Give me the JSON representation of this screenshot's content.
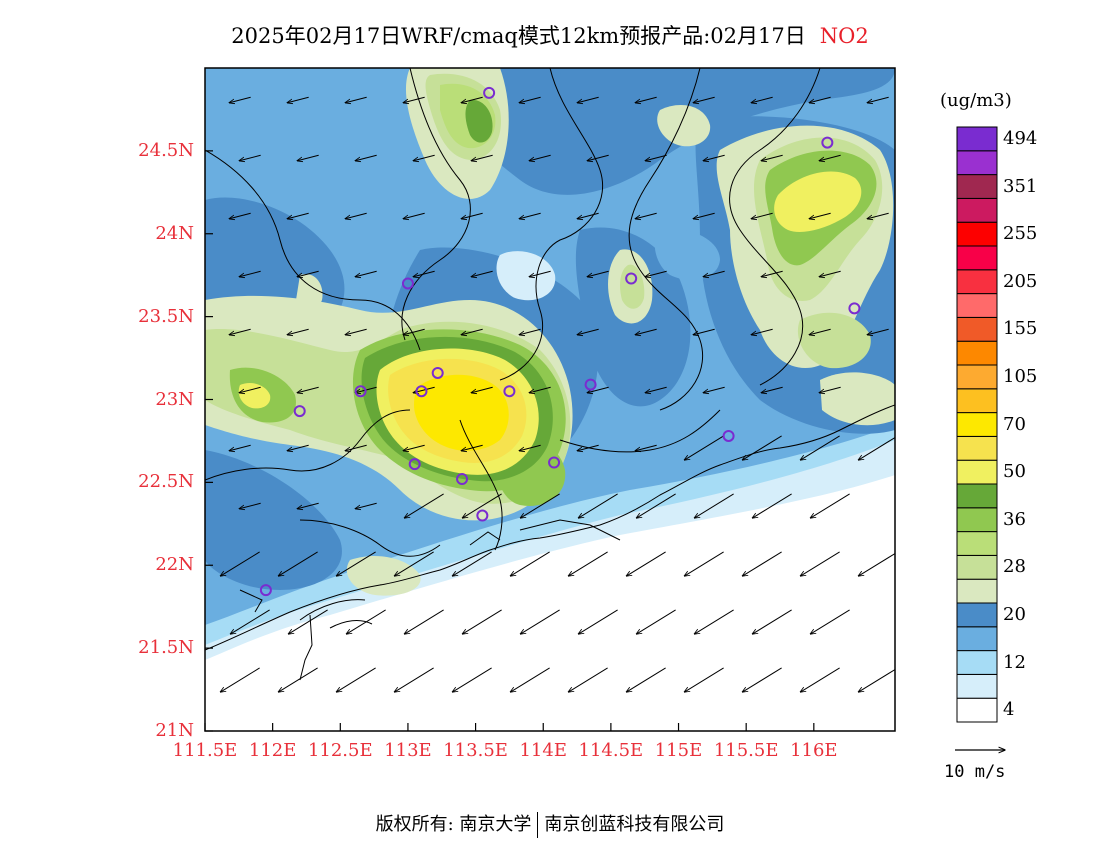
{
  "title": {
    "main": "2025年02月17日WRF/cmaq模式12km预报产品:02月17日",
    "pollutant": "NO2"
  },
  "map": {
    "lat_ticks": [
      {
        "value": 24.5,
        "label": "24.5N"
      },
      {
        "value": 24.0,
        "label": "24N"
      },
      {
        "value": 23.5,
        "label": "23.5N"
      },
      {
        "value": 23.0,
        "label": "23N"
      },
      {
        "value": 22.5,
        "label": "22.5N"
      },
      {
        "value": 22.0,
        "label": "22N"
      },
      {
        "value": 21.5,
        "label": "21.5N"
      },
      {
        "value": 21.0,
        "label": "21N"
      }
    ],
    "lon_ticks": [
      {
        "value": 111.5,
        "label": "111.5E"
      },
      {
        "value": 112.0,
        "label": "112E"
      },
      {
        "value": 112.5,
        "label": "112.5E"
      },
      {
        "value": 113.0,
        "label": "113E"
      },
      {
        "value": 113.5,
        "label": "113.5E"
      },
      {
        "value": 114.0,
        "label": "114E"
      },
      {
        "value": 114.5,
        "label": "114.5E"
      },
      {
        "value": 115.0,
        "label": "115E"
      },
      {
        "value": 115.5,
        "label": "115.5E"
      },
      {
        "value": 116.0,
        "label": "116E"
      }
    ],
    "lon_range": [
      111.5,
      116.6
    ],
    "lat_range": [
      21.0,
      25.0
    ],
    "wind_direction": "northeasterly",
    "station_markers": [
      {
        "lon": 113.6,
        "lat": 24.85
      },
      {
        "lon": 116.1,
        "lat": 24.55
      },
      {
        "lon": 113.0,
        "lat": 23.7
      },
      {
        "lon": 114.65,
        "lat": 23.73
      },
      {
        "lon": 116.3,
        "lat": 23.55
      },
      {
        "lon": 112.2,
        "lat": 22.93
      },
      {
        "lon": 112.65,
        "lat": 23.05
      },
      {
        "lon": 113.1,
        "lat": 23.05
      },
      {
        "lon": 113.22,
        "lat": 23.16
      },
      {
        "lon": 113.75,
        "lat": 23.05
      },
      {
        "lon": 114.35,
        "lat": 23.09
      },
      {
        "lon": 113.05,
        "lat": 22.61
      },
      {
        "lon": 113.4,
        "lat": 22.52
      },
      {
        "lon": 114.08,
        "lat": 22.62
      },
      {
        "lon": 113.55,
        "lat": 22.3
      },
      {
        "lon": 115.37,
        "lat": 22.78
      },
      {
        "lon": 111.95,
        "lat": 21.85
      }
    ],
    "colors": {
      "station_marker": "#7a2cd0",
      "tick_label": "#e8303a",
      "frame": "#000000"
    }
  },
  "colorbar": {
    "unit": "(ug/m3)",
    "colors": [
      "#ffffff",
      "#d6eefa",
      "#a6dcf5",
      "#6aaee0",
      "#4a8cc8",
      "#dae8c0",
      "#c6e098",
      "#bade78",
      "#90c850",
      "#66a838",
      "#f0f060",
      "#f6e24e",
      "#fde800",
      "#fdc020",
      "#fdaa30",
      "#fd8800",
      "#f05a28",
      "#ff6a6a",
      "#f83040",
      "#f80048",
      "#fd0000",
      "#cc1a60",
      "#a02850",
      "#9a30d0",
      "#7a2cd0"
    ],
    "labels": [
      {
        "text": "4",
        "boundary": 1
      },
      {
        "text": "12",
        "boundary": 3
      },
      {
        "text": "20",
        "boundary": 5
      },
      {
        "text": "28",
        "boundary": 7
      },
      {
        "text": "36",
        "boundary": 9
      },
      {
        "text": "50",
        "boundary": 11
      },
      {
        "text": "70",
        "boundary": 13
      },
      {
        "text": "105",
        "boundary": 15
      },
      {
        "text": "155",
        "boundary": 17
      },
      {
        "text": "205",
        "boundary": 19
      },
      {
        "text": "255",
        "boundary": 21
      },
      {
        "text": "351",
        "boundary": 23
      },
      {
        "text": "494",
        "boundary": 25
      }
    ]
  },
  "wind_reference": {
    "label": "10 m/s"
  },
  "copyright": {
    "prefix": "版权所有: 南京大学",
    "company": "南京创蓝科技有限公司"
  }
}
